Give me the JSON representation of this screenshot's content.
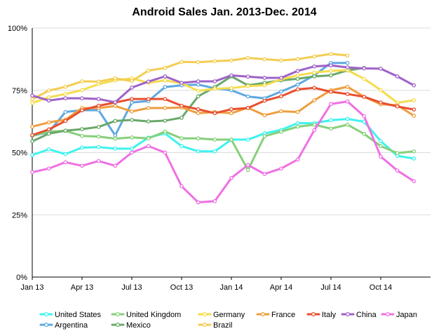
{
  "chart_data": {
    "type": "line",
    "title": "Android Sales Jan. 2013-Dec. 2014",
    "xlabel": "",
    "ylabel": "",
    "ylim": [
      0,
      100
    ],
    "y_ticks": [
      "0%",
      "25%",
      "50%",
      "75%",
      "100%"
    ],
    "x_ticks": [
      "Jan 13",
      "Apr 13",
      "Jul 13",
      "Oct 13",
      "Jan 14",
      "Apr 14",
      "Jul 14",
      "Oct 14"
    ],
    "x_count": 24,
    "grid": true,
    "legend_position": "bottom",
    "series": [
      {
        "name": "United States",
        "color": "#3ef3ef",
        "values": [
          49.0,
          51.3,
          49.4,
          52.0,
          52.2,
          51.6,
          51.6,
          56.0,
          57.7,
          52.6,
          50.5,
          50.5,
          55.2,
          55.2,
          57.7,
          59.1,
          61.8,
          61.8,
          63.0,
          63.5,
          62.4,
          54.6,
          48.7,
          47.6
        ]
      },
      {
        "name": "Argentina",
        "color": "#5ea8e0",
        "values": [
          56.7,
          58.2,
          66.3,
          67.0,
          67.0,
          56.9,
          70.1,
          70.7,
          76.3,
          77.0,
          77.3,
          75.8,
          75.0,
          72.5,
          71.8,
          74.5,
          77.3,
          81.0,
          86.0,
          86.0,
          null,
          null,
          null,
          null
        ]
      },
      {
        "name": "United Kingdom",
        "color": "#86d07a",
        "values": [
          56.8,
          58.4,
          58.7,
          56.7,
          56.4,
          55.6,
          56.1,
          55.7,
          58.4,
          55.7,
          55.7,
          55.2,
          55.2,
          43.0,
          56.6,
          58.4,
          60.4,
          61.2,
          59.6,
          61.2,
          57.5,
          52.6,
          49.8,
          50.5
        ]
      },
      {
        "name": "Mexico",
        "color": "#6aa86a",
        "values": [
          54.5,
          57.6,
          58.8,
          59.4,
          60.3,
          62.7,
          63.1,
          62.5,
          62.8,
          64.0,
          72.6,
          76.3,
          80.6,
          77.0,
          78.0,
          79.0,
          79.6,
          80.6,
          81.0,
          83.0,
          84.0,
          null,
          null,
          null
        ]
      },
      {
        "name": "Germany",
        "color": "#f5dc4e",
        "values": [
          69.9,
          72.2,
          73.5,
          75.1,
          77.5,
          79.0,
          79.8,
          78.0,
          79.0,
          77.8,
          74.8,
          75.6,
          75.9,
          76.7,
          77.0,
          79.4,
          81.0,
          82.1,
          82.8,
          83.1,
          79.6,
          75.1,
          70.0,
          71.0
        ]
      },
      {
        "name": "Brazil",
        "color": "#f3cd52",
        "values": [
          71.4,
          74.9,
          76.4,
          78.6,
          78.5,
          79.8,
          78.7,
          82.9,
          84.0,
          86.4,
          86.3,
          86.7,
          87.0,
          88.0,
          87.5,
          87.0,
          87.5,
          88.6,
          89.6,
          89.0,
          null,
          null,
          null,
          null
        ]
      },
      {
        "name": "France",
        "color": "#ef9e3e",
        "values": [
          60.4,
          62.1,
          63.2,
          67.9,
          67.9,
          68.7,
          66.5,
          67.9,
          67.9,
          68.1,
          65.8,
          66.3,
          65.8,
          68.0,
          65.0,
          66.6,
          66.3,
          71.0,
          75.0,
          76.4,
          72.4,
          69.4,
          69.0,
          64.8
        ]
      },
      {
        "name": "Italy",
        "color": "#e84f2e",
        "values": [
          57.0,
          59.3,
          62.7,
          67.0,
          68.8,
          70.1,
          71.5,
          71.5,
          71.5,
          68.8,
          67.4,
          65.8,
          67.4,
          67.9,
          70.8,
          72.6,
          75.4,
          76.0,
          74.4,
          73.5,
          72.4,
          70.1,
          68.5,
          67.3
        ]
      },
      {
        "name": "China",
        "color": "#9e62c8",
        "values": [
          72.9,
          70.9,
          71.8,
          71.8,
          71.5,
          70.2,
          76.1,
          78.5,
          80.6,
          78.0,
          78.6,
          78.6,
          81.0,
          80.5,
          80.0,
          80.0,
          82.8,
          84.6,
          85.0,
          84.2,
          83.8,
          83.7,
          80.6,
          77.0
        ]
      },
      {
        "name": "Japan",
        "color": "#ef70e4",
        "values": [
          42.1,
          43.6,
          46.1,
          44.7,
          46.6,
          44.7,
          50.0,
          52.6,
          50.0,
          36.5,
          30.0,
          30.5,
          39.8,
          45.0,
          41.4,
          43.6,
          47.2,
          59.0,
          69.5,
          70.5,
          64.6,
          48.4,
          42.8,
          38.5
        ]
      }
    ],
    "legend_rows": [
      [
        "United States",
        "United Kingdom",
        "Germany",
        "France",
        "Italy",
        "China",
        "Japan"
      ],
      [
        "Argentina",
        "Mexico",
        "Brazil"
      ]
    ]
  }
}
